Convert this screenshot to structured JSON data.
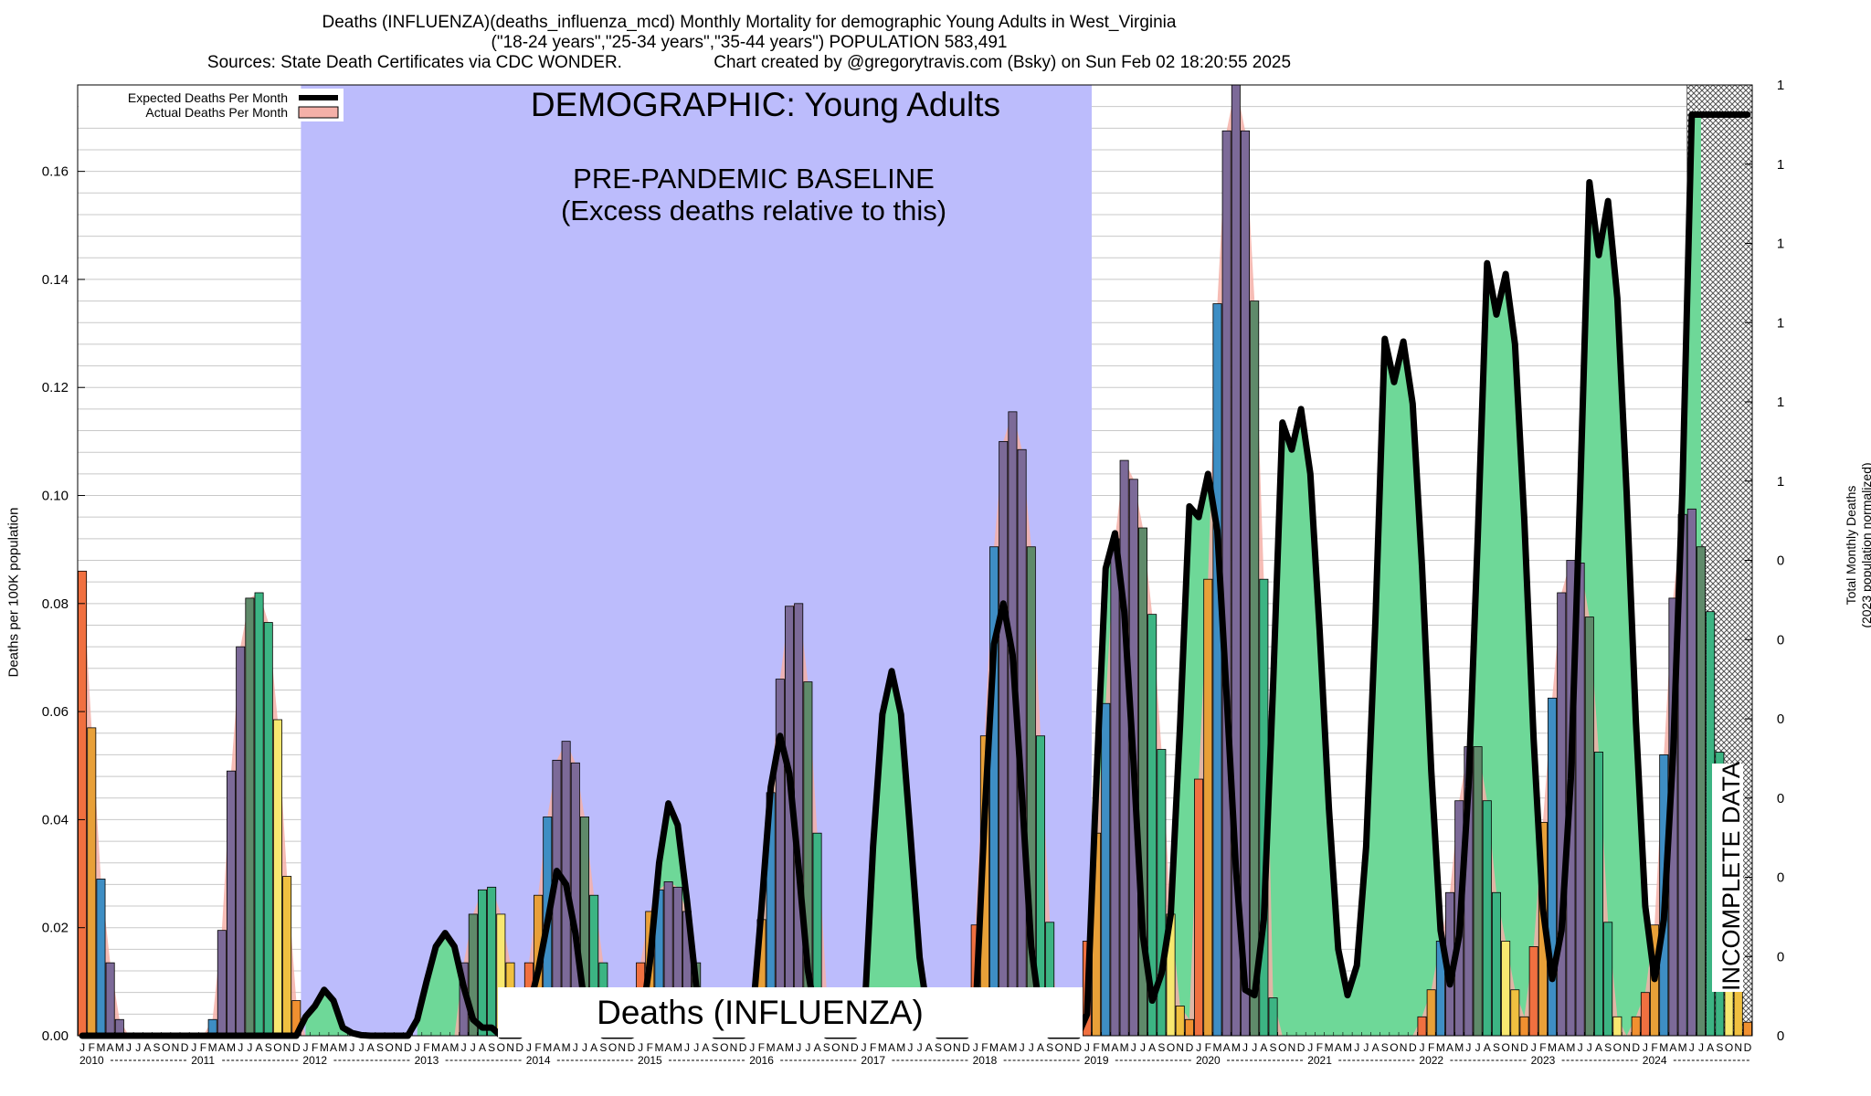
{
  "header": {
    "title": "Deaths (INFLUENZA)(deaths_influenza_mcd) Monthly Mortality for demographic Young Adults in West_Virginia",
    "subtitle": "(\"18-24 years\",\"25-34 years\",\"35-44 years\") POPULATION 583,491",
    "sources": "Sources: State Death Certificates via CDC WONDER.",
    "credit": "Chart created by @gregorytravis.com (Bsky) on Sun Feb 02 18:20:55 2025"
  },
  "chart_data": {
    "type": "bar",
    "ylabel": "Deaths per 100K population",
    "y2label_line1": "Total Monthly Deaths",
    "y2label_line2": "(2023 population normalized)",
    "ylim": [
      0,
      0.176
    ],
    "yticks": [
      "0.00",
      "0.02",
      "0.04",
      "0.06",
      "0.08",
      "0.10",
      "0.12",
      "0.14",
      "0.16"
    ],
    "y2ticks": [
      "0",
      "0",
      "0",
      "0",
      "0",
      "0",
      "0",
      "1",
      "1",
      "1",
      "1",
      "1",
      "1"
    ],
    "grid": true,
    "legend_position": "top-left",
    "legend": [
      {
        "label": "Expected Deaths Per Month",
        "color": "#000000"
      },
      {
        "label": "Actual Deaths Per Month",
        "color": "#f4b0a8"
      }
    ],
    "annotations": {
      "demographic": "DEMOGRAPHIC: Young Adults",
      "baseline_line1": "PRE-PANDEMIC BASELINE",
      "baseline_line2": "(Excess deaths relative to this)",
      "cause_banner": "Deaths (INFLUENZA)",
      "incomplete": "INCOMPLETE DATA"
    },
    "baseline_period": {
      "start_year": 2012,
      "end_year": 2019
    },
    "incomplete_from": "2024-06",
    "years": [
      "2010",
      "2011",
      "2012",
      "2013",
      "2014",
      "2015",
      "2016",
      "2017",
      "2018",
      "2019",
      "2020",
      "2021",
      "2022",
      "2023",
      "2024"
    ],
    "month_letters": [
      "J",
      "F",
      "M",
      "A",
      "M",
      "J",
      "J",
      "A",
      "S",
      "O",
      "N",
      "D"
    ],
    "actual": [
      {
        "year": 2010,
        "values": [
          0.086,
          0.057,
          0.029,
          0.0135,
          0.003,
          0,
          0,
          0,
          0,
          0,
          0,
          0
        ]
      },
      {
        "year": 2011,
        "values": [
          0,
          0,
          0.003,
          0.0195,
          0.049,
          0.072,
          0.081,
          0.082,
          0.0765,
          0.0585,
          0.0295,
          0.0065
        ]
      },
      {
        "year": 2012,
        "values": [
          0,
          0,
          0,
          0,
          0,
          0,
          0,
          0,
          0,
          0,
          0,
          0
        ]
      },
      {
        "year": 2013,
        "values": [
          0,
          0,
          0,
          0,
          0,
          0.0135,
          0.0225,
          0.027,
          0.0275,
          0.0225,
          0.0135,
          0.0035
        ]
      },
      {
        "year": 2014,
        "values": [
          0.0135,
          0.026,
          0.0405,
          0.051,
          0.0545,
          0.0505,
          0.0405,
          0.026,
          0.0135,
          0,
          0,
          0
        ]
      },
      {
        "year": 2015,
        "values": [
          0.0135,
          0.023,
          0.027,
          0.0285,
          0.0275,
          0.023,
          0.0135,
          0,
          0,
          0,
          0,
          0
        ]
      },
      {
        "year": 2016,
        "values": [
          0,
          0.0215,
          0.045,
          0.066,
          0.0795,
          0.08,
          0.0655,
          0.0375,
          0.0085,
          0,
          0,
          0
        ]
      },
      {
        "year": 2017,
        "values": [
          0,
          0,
          0,
          0,
          0,
          0,
          0,
          0,
          0,
          0,
          0,
          0
        ]
      },
      {
        "year": 2018,
        "values": [
          0.0205,
          0.0555,
          0.0905,
          0.11,
          0.1155,
          0.1085,
          0.0905,
          0.0555,
          0.021,
          0,
          0,
          0
        ]
      },
      {
        "year": 2019,
        "values": [
          0.0175,
          0.0375,
          0.0615,
          0.092,
          0.1065,
          0.103,
          0.094,
          0.078,
          0.053,
          0.0225,
          0.0055,
          0.003
        ]
      },
      {
        "year": 2020,
        "values": [
          0.0475,
          0.0845,
          0.1355,
          0.1675,
          0.176,
          0.1675,
          0.136,
          0.0845,
          0.007,
          0,
          0,
          0
        ]
      },
      {
        "year": 2021,
        "values": [
          0,
          0,
          0,
          0,
          0,
          0,
          0,
          0,
          0,
          0,
          0,
          0
        ]
      },
      {
        "year": 2022,
        "values": [
          0.0035,
          0.0085,
          0.0175,
          0.0265,
          0.0435,
          0.0535,
          0.0535,
          0.0435,
          0.0265,
          0.0175,
          0.0085,
          0.0035
        ]
      },
      {
        "year": 2023,
        "values": [
          0.0165,
          0.0395,
          0.0625,
          0.082,
          0.088,
          0.0875,
          0.0775,
          0.0525,
          0.021,
          0.0035,
          0,
          0.0035
        ]
      },
      {
        "year": 2024,
        "values": [
          0.008,
          0.0205,
          0.052,
          0.081,
          0.0965,
          0.0975,
          0.0905,
          0.0785,
          0.0525,
          0.0315,
          0.0145,
          0.0025
        ]
      }
    ],
    "expected": [
      {
        "year": 2010,
        "values": [
          0,
          0,
          0,
          0,
          0,
          0,
          0,
          0,
          0,
          0,
          0,
          0
        ]
      },
      {
        "year": 2011,
        "values": [
          0,
          0,
          0,
          0,
          0,
          0,
          0,
          0,
          0,
          0,
          0,
          0
        ]
      },
      {
        "year": 2012,
        "values": [
          0.0035,
          0.0055,
          0.0085,
          0.0065,
          0.0015,
          0.0005,
          0.0001,
          0,
          0,
          0,
          0,
          0
        ]
      },
      {
        "year": 2013,
        "values": [
          0.003,
          0.01,
          0.0165,
          0.019,
          0.0165,
          0.009,
          0.003,
          0.0015,
          0.0015,
          0,
          0,
          0
        ]
      },
      {
        "year": 2014,
        "values": [
          0.005,
          0.012,
          0.021,
          0.0305,
          0.028,
          0.019,
          0.0055,
          0.002,
          0,
          0,
          0,
          0
        ]
      },
      {
        "year": 2015,
        "values": [
          0.001,
          0.0135,
          0.032,
          0.043,
          0.039,
          0.025,
          0.009,
          0.0015,
          0,
          0,
          0,
          0
        ]
      },
      {
        "year": 2016,
        "values": [
          0.0025,
          0.0235,
          0.046,
          0.0555,
          0.0485,
          0.031,
          0.012,
          0.002,
          0,
          0,
          0,
          0
        ]
      },
      {
        "year": 2017,
        "values": [
          0.0015,
          0.035,
          0.0595,
          0.0675,
          0.0595,
          0.0375,
          0.0145,
          0.0025,
          0,
          0,
          0,
          0
        ]
      },
      {
        "year": 2018,
        "values": [
          0.0035,
          0.041,
          0.0725,
          0.08,
          0.0705,
          0.0445,
          0.0165,
          0.0035,
          0,
          0,
          0,
          0
        ]
      },
      {
        "year": 2019,
        "values": [
          0.004,
          0.047,
          0.0865,
          0.093,
          0.0785,
          0.0505,
          0.0185,
          0.0065,
          0.0115,
          0.0225,
          0.0575,
          0.098
        ]
      },
      {
        "year": 2020,
        "values": [
          0.096,
          0.104,
          0.0935,
          0.063,
          0.031,
          0.0085,
          0.0075,
          0.0215,
          0.065,
          0.1135,
          0.1085,
          0.116
        ]
      },
      {
        "year": 2021,
        "values": [
          0.104,
          0.075,
          0.042,
          0.016,
          0.0075,
          0.013,
          0.035,
          0.077,
          0.129,
          0.121,
          0.1285,
          0.117
        ]
      },
      {
        "year": 2022,
        "values": [
          0.087,
          0.049,
          0.0195,
          0.0095,
          0.0185,
          0.046,
          0.0925,
          0.143,
          0.1335,
          0.141,
          0.128,
          0.0955
        ]
      },
      {
        "year": 2023,
        "values": [
          0.055,
          0.0235,
          0.0105,
          0.0195,
          0.0475,
          0.1005,
          0.158,
          0.1445,
          0.1545,
          0.1365,
          0.1005,
          0.058
        ]
      },
      {
        "year": 2024,
        "values": [
          0.024,
          0.0105,
          0.0215,
          0.0525,
          0.1015,
          0.1705,
          0.1705,
          0.1705,
          0.1705,
          0.1705,
          0.1705,
          0.1705
        ]
      }
    ]
  }
}
